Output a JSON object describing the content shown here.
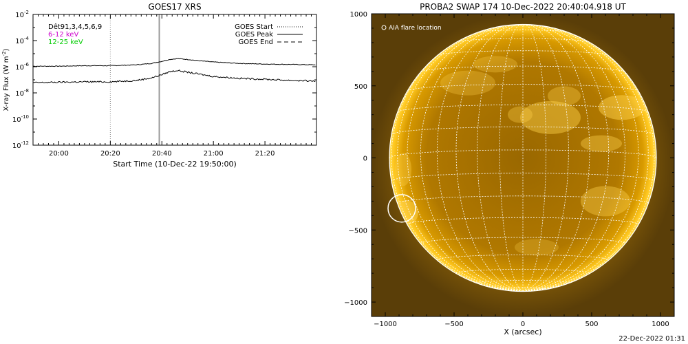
{
  "chart_data": [
    {
      "type": "line",
      "title": "GOES17 XRS",
      "xlabel": "Start Time (10-Dec-22 19:50:00)",
      "ylabel": "X-ray Flux (W m",
      "ylabel_exp": "-2",
      "ylabel_close": ")",
      "y_scale": "log",
      "ylim": [
        1e-12,
        0.01
      ],
      "xlim": [
        "19:50",
        "21:40"
      ],
      "x_ticks": [
        "20:00",
        "20:20",
        "20:40",
        "21:00",
        "21:20"
      ],
      "y_ticks": [
        {
          "base": "10",
          "exp": "-2",
          "value": 0.01
        },
        {
          "base": "10",
          "exp": "-4",
          "value": 0.0001
        },
        {
          "base": "10",
          "exp": "-6",
          "value": 1e-06
        },
        {
          "base": "10",
          "exp": "-8",
          "value": 1e-08
        },
        {
          "base": "10",
          "exp": "-10",
          "value": 1e-10
        },
        {
          "base": "10",
          "exp": "-12",
          "value": 1e-12
        }
      ],
      "legend_left": [
        {
          "label": "Dêt91,3,4,5,6,9",
          "color": "#000000"
        },
        {
          "label": "6-12 keV",
          "color": "#cc00cc"
        },
        {
          "label": "12-25 keV",
          "color": "#00cc00"
        }
      ],
      "legend_right": [
        {
          "label": "GOES Start",
          "style": "dotted"
        },
        {
          "label": "GOES Peak",
          "style": "solid"
        },
        {
          "label": "GOES End",
          "style": "dashed"
        }
      ],
      "markers": [
        {
          "label": "GOES Start",
          "time": "20:20",
          "style": "dotted"
        },
        {
          "label": "GOES Peak",
          "time": "20:39",
          "style": "solid"
        }
      ],
      "series": [
        {
          "color": "#000000",
          "x": [
            "19:50",
            "20:00",
            "20:10",
            "20:20",
            "20:30",
            "20:36",
            "20:40",
            "20:43",
            "20:46",
            "20:50",
            "20:55",
            "21:00",
            "21:10",
            "21:20",
            "21:30",
            "21:40"
          ],
          "values": [
            1.1e-06,
            1.1e-06,
            1.2e-06,
            1.2e-06,
            1.4e-06,
            1.8e-06,
            2.6e-06,
            3.6e-06,
            4.2e-06,
            3.6e-06,
            2.8e-06,
            2.3e-06,
            1.8e-06,
            1.6e-06,
            1.5e-06,
            1.4e-06
          ]
        },
        {
          "color": "#000000",
          "x": [
            "19:50",
            "20:00",
            "20:10",
            "20:20",
            "20:30",
            "20:36",
            "20:40",
            "20:43",
            "20:46",
            "20:50",
            "20:55",
            "21:00",
            "21:10",
            "21:20",
            "21:30",
            "21:40"
          ],
          "values": [
            6e-08,
            6.5e-08,
            7e-08,
            7e-08,
            9e-08,
            1.4e-07,
            2.5e-07,
            4.2e-07,
            5.2e-07,
            3.8e-07,
            2.6e-07,
            1.8e-07,
            1.3e-07,
            1.1e-07,
            9e-08,
            8e-08
          ]
        }
      ]
    },
    {
      "type": "image",
      "title": "PROBA2 SWAP 174 10-Dec-2022 20:40:04.918 UT",
      "xlabel": "X (arcsec)",
      "xlim": [
        -1100,
        1100
      ],
      "ylim": [
        -1100,
        1000
      ],
      "x_ticks": [
        -1000,
        -500,
        0,
        500,
        1000
      ],
      "y_ticks": [
        -1000,
        -500,
        0,
        500,
        1000
      ],
      "x_tick_labels": [
        "−1000",
        "−500",
        "0",
        "500",
        "1000"
      ],
      "y_tick_labels": [
        "−1000",
        "−500",
        "0",
        "500",
        "1000"
      ],
      "legend": [
        {
          "symbol": "circle",
          "label": "AIA flare location",
          "color": "#ffffff"
        }
      ],
      "solar_radius_arcsec": 970,
      "grid": true,
      "grid_color": "#ffffff",
      "colors": {
        "limb": "#f2b000",
        "disk": "#b67e00",
        "corona": "#6a4a05"
      },
      "flare_location": {
        "x": -880,
        "y": -350,
        "radius": 100
      }
    }
  ],
  "footer": "22-Dec-2022 01:31"
}
